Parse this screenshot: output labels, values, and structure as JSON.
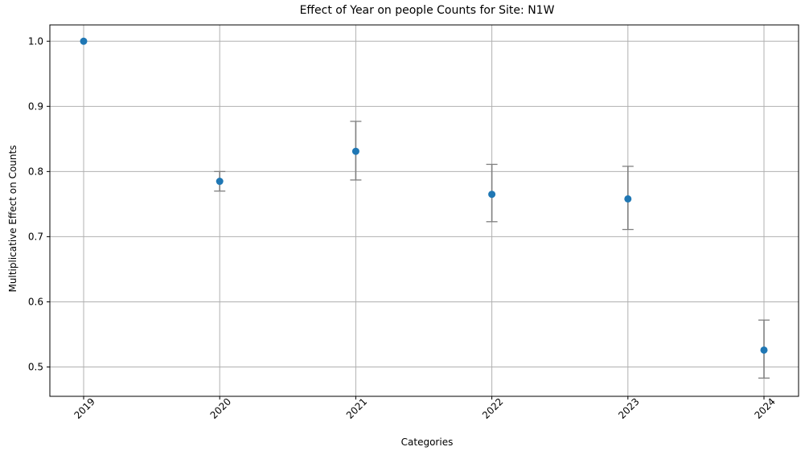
{
  "chart_data": {
    "type": "scatter",
    "title": "Effect of Year on people Counts for Site: N1W",
    "xlabel": "Categories",
    "ylabel": "Multiplicative Effect on Counts",
    "categories": [
      "2019",
      "2020",
      "2021",
      "2022",
      "2023",
      "2024"
    ],
    "series": [
      {
        "name": "Effect",
        "values": [
          1.0,
          0.785,
          0.831,
          0.765,
          0.758,
          0.526
        ],
        "lower": [
          1.0,
          0.77,
          0.787,
          0.723,
          0.711,
          0.483
        ],
        "upper": [
          1.0,
          0.8,
          0.877,
          0.811,
          0.808,
          0.572
        ]
      }
    ],
    "ylim": [
      0.455,
      1.025
    ],
    "yticks": [
      0.5,
      0.6,
      0.7,
      0.8,
      0.9,
      1.0
    ],
    "ytick_labels": [
      "0.5",
      "0.6",
      "0.7",
      "0.8",
      "0.9",
      "1.0"
    ],
    "grid": true,
    "colors": {
      "marker": "#1f77b4",
      "errorbar": "#808080",
      "grid": "#b0b0b0",
      "axis": "#000000"
    }
  }
}
